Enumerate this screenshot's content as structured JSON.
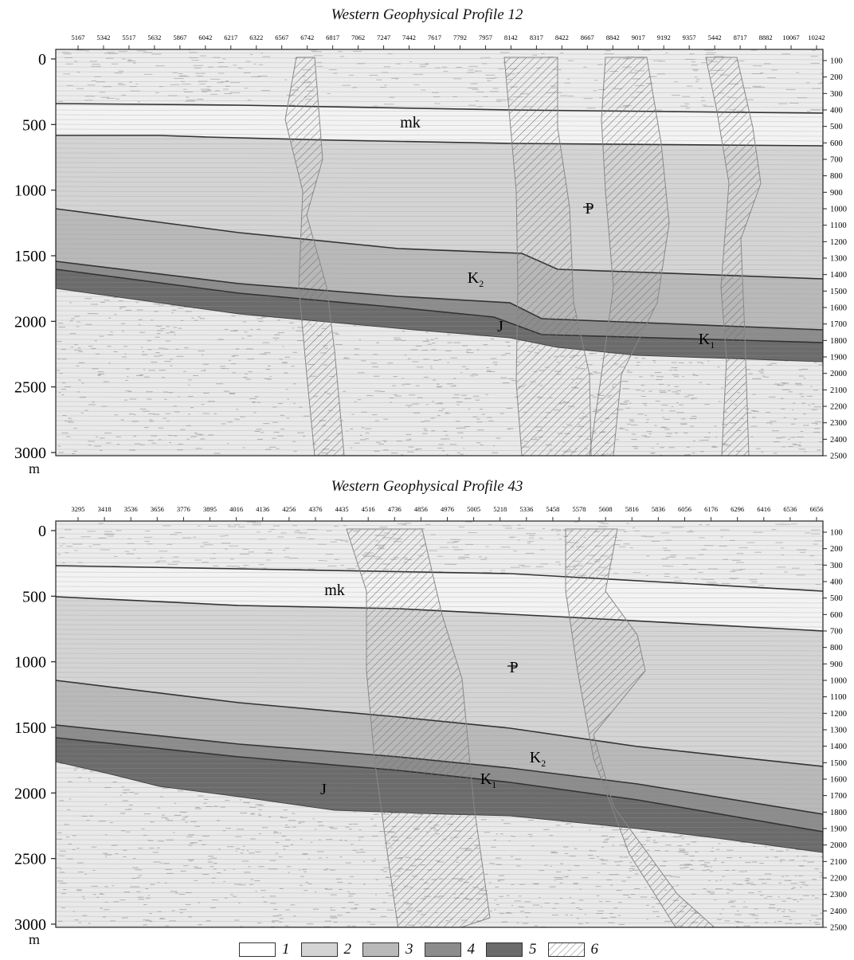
{
  "profiles": [
    {
      "title": "Western Geophysical Profile 12",
      "depth_unit": "m",
      "left_depth_ticks": [
        "0",
        "500",
        "1000",
        "1500",
        "2000",
        "2500",
        "3000"
      ],
      "right_depth_ticks": [
        "100",
        "200",
        "300",
        "400",
        "500",
        "600",
        "700",
        "800",
        "900",
        "1000",
        "1100",
        "1200",
        "1300",
        "1400",
        "1500",
        "1600",
        "1700",
        "1800",
        "1900",
        "2000",
        "2100",
        "2200",
        "2300",
        "2400",
        "2500"
      ],
      "top_ticks": [
        "5167",
        "5342",
        "5517",
        "5632",
        "5867",
        "6042",
        "6217",
        "6322",
        "6567",
        "6742",
        "6817",
        "7062",
        "7247",
        "7442",
        "7617",
        "7792",
        "7957",
        "8142",
        "8317",
        "8422",
        "8667",
        "8842",
        "9017",
        "9192",
        "9357",
        "5442",
        "8717",
        "8882",
        "10067",
        "10242"
      ],
      "labels": {
        "mk": "mk",
        "P": "P",
        "K2": "K",
        "K2_sub": "2",
        "J": "J",
        "K1": "K",
        "K1_sub": "1"
      }
    },
    {
      "title": "Western Geophysical Profile 43",
      "depth_unit": "m",
      "left_depth_ticks": [
        "0",
        "500",
        "1000",
        "1500",
        "2000",
        "2500",
        "3000"
      ],
      "right_depth_ticks": [
        "100",
        "200",
        "300",
        "400",
        "500",
        "600",
        "700",
        "800",
        "900",
        "1000",
        "1100",
        "1200",
        "1300",
        "1400",
        "1500",
        "1600",
        "1700",
        "1800",
        "1900",
        "2000",
        "2100",
        "2200",
        "2300",
        "2400",
        "2500"
      ],
      "top_ticks": [
        "3295",
        "3418",
        "3536",
        "3656",
        "3776",
        "3895",
        "4016",
        "4136",
        "4256",
        "4376",
        "4435",
        "4516",
        "4736",
        "4856",
        "4976",
        "5005",
        "5218",
        "5336",
        "5458",
        "5578",
        "5608",
        "5816",
        "5836",
        "6056",
        "6176",
        "6296",
        "6416",
        "6536",
        "6656"
      ],
      "labels": {
        "mk": "mk",
        "P": "P",
        "K2": "K",
        "K2_sub": "2",
        "J": "J",
        "K1": "K",
        "K1_sub": "1"
      }
    }
  ],
  "legend": [
    {
      "num": "1",
      "color": "#ffffff",
      "hatch": false
    },
    {
      "num": "2",
      "color": "#d4d4d4",
      "hatch": false
    },
    {
      "num": "3",
      "color": "#b9b9b9",
      "hatch": false
    },
    {
      "num": "4",
      "color": "#8c8c8c",
      "hatch": false
    },
    {
      "num": "5",
      "color": "#6b6b6b",
      "hatch": false
    },
    {
      "num": "6",
      "color": "#ffffff",
      "hatch": true
    }
  ],
  "colors": {
    "mk": "#f3f3f3",
    "P": "#d4d4d4",
    "K2": "#b9b9b9",
    "K1": "#8c8c8c",
    "J": "#6b6b6b",
    "basement": "#e9e9e9"
  }
}
